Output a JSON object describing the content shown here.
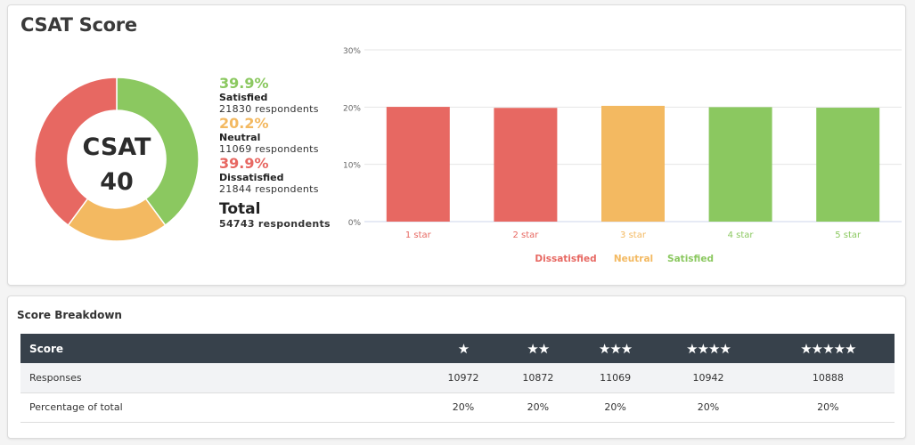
{
  "card_title": "CSAT Score",
  "donut": {
    "center_label": "CSAT",
    "center_value": "40"
  },
  "colors": {
    "satisfied": "#8bc860",
    "neutral": "#f3b961",
    "dissatisfied": "#e76862",
    "table_header": "#37414b"
  },
  "summary": [
    {
      "pct": "39.9%",
      "label": "Satisfied",
      "respondents": "21830 respondents",
      "color": "#8bc860",
      "value": 39.9
    },
    {
      "pct": "20.2%",
      "label": "Neutral",
      "respondents": "11069 respondents",
      "color": "#f3b961",
      "value": 20.2
    },
    {
      "pct": "39.9%",
      "label": "Dissatisfied",
      "respondents": "21844 respondents",
      "color": "#e76862",
      "value": 39.9
    }
  ],
  "total": {
    "label": "Total",
    "respondents": "54743 respondents"
  },
  "chart_data": {
    "type": "bar",
    "categories": [
      "1 star",
      "2 star",
      "3 star",
      "4 star",
      "5 star"
    ],
    "values": [
      20.04,
      19.86,
      20.22,
      19.99,
      19.89
    ],
    "colors": [
      "#e76862",
      "#e76862",
      "#f3b961",
      "#8bc860",
      "#8bc860"
    ],
    "yticks": [
      "0%",
      "10%",
      "20%",
      "30%"
    ],
    "ytick_values": [
      0,
      10,
      20,
      30
    ],
    "ylim": [
      0,
      30
    ],
    "grid": true,
    "legend_position": "bottom",
    "legend": [
      {
        "name": "Dissatisfied",
        "color": "#e76862"
      },
      {
        "name": "Neutral",
        "color": "#f3b961"
      },
      {
        "name": "Satisfied",
        "color": "#8bc860"
      }
    ]
  },
  "breakdown": {
    "title": "Score Breakdown",
    "header": {
      "label": "Score",
      "stars": [
        "★",
        "★★",
        "★★★",
        "★★★★",
        "★★★★★"
      ]
    },
    "rows": [
      {
        "label": "Responses",
        "values": [
          "10972",
          "10872",
          "11069",
          "10942",
          "10888"
        ]
      },
      {
        "label": "Percentage of total",
        "values": [
          "20%",
          "20%",
          "20%",
          "20%",
          "20%"
        ]
      }
    ]
  }
}
